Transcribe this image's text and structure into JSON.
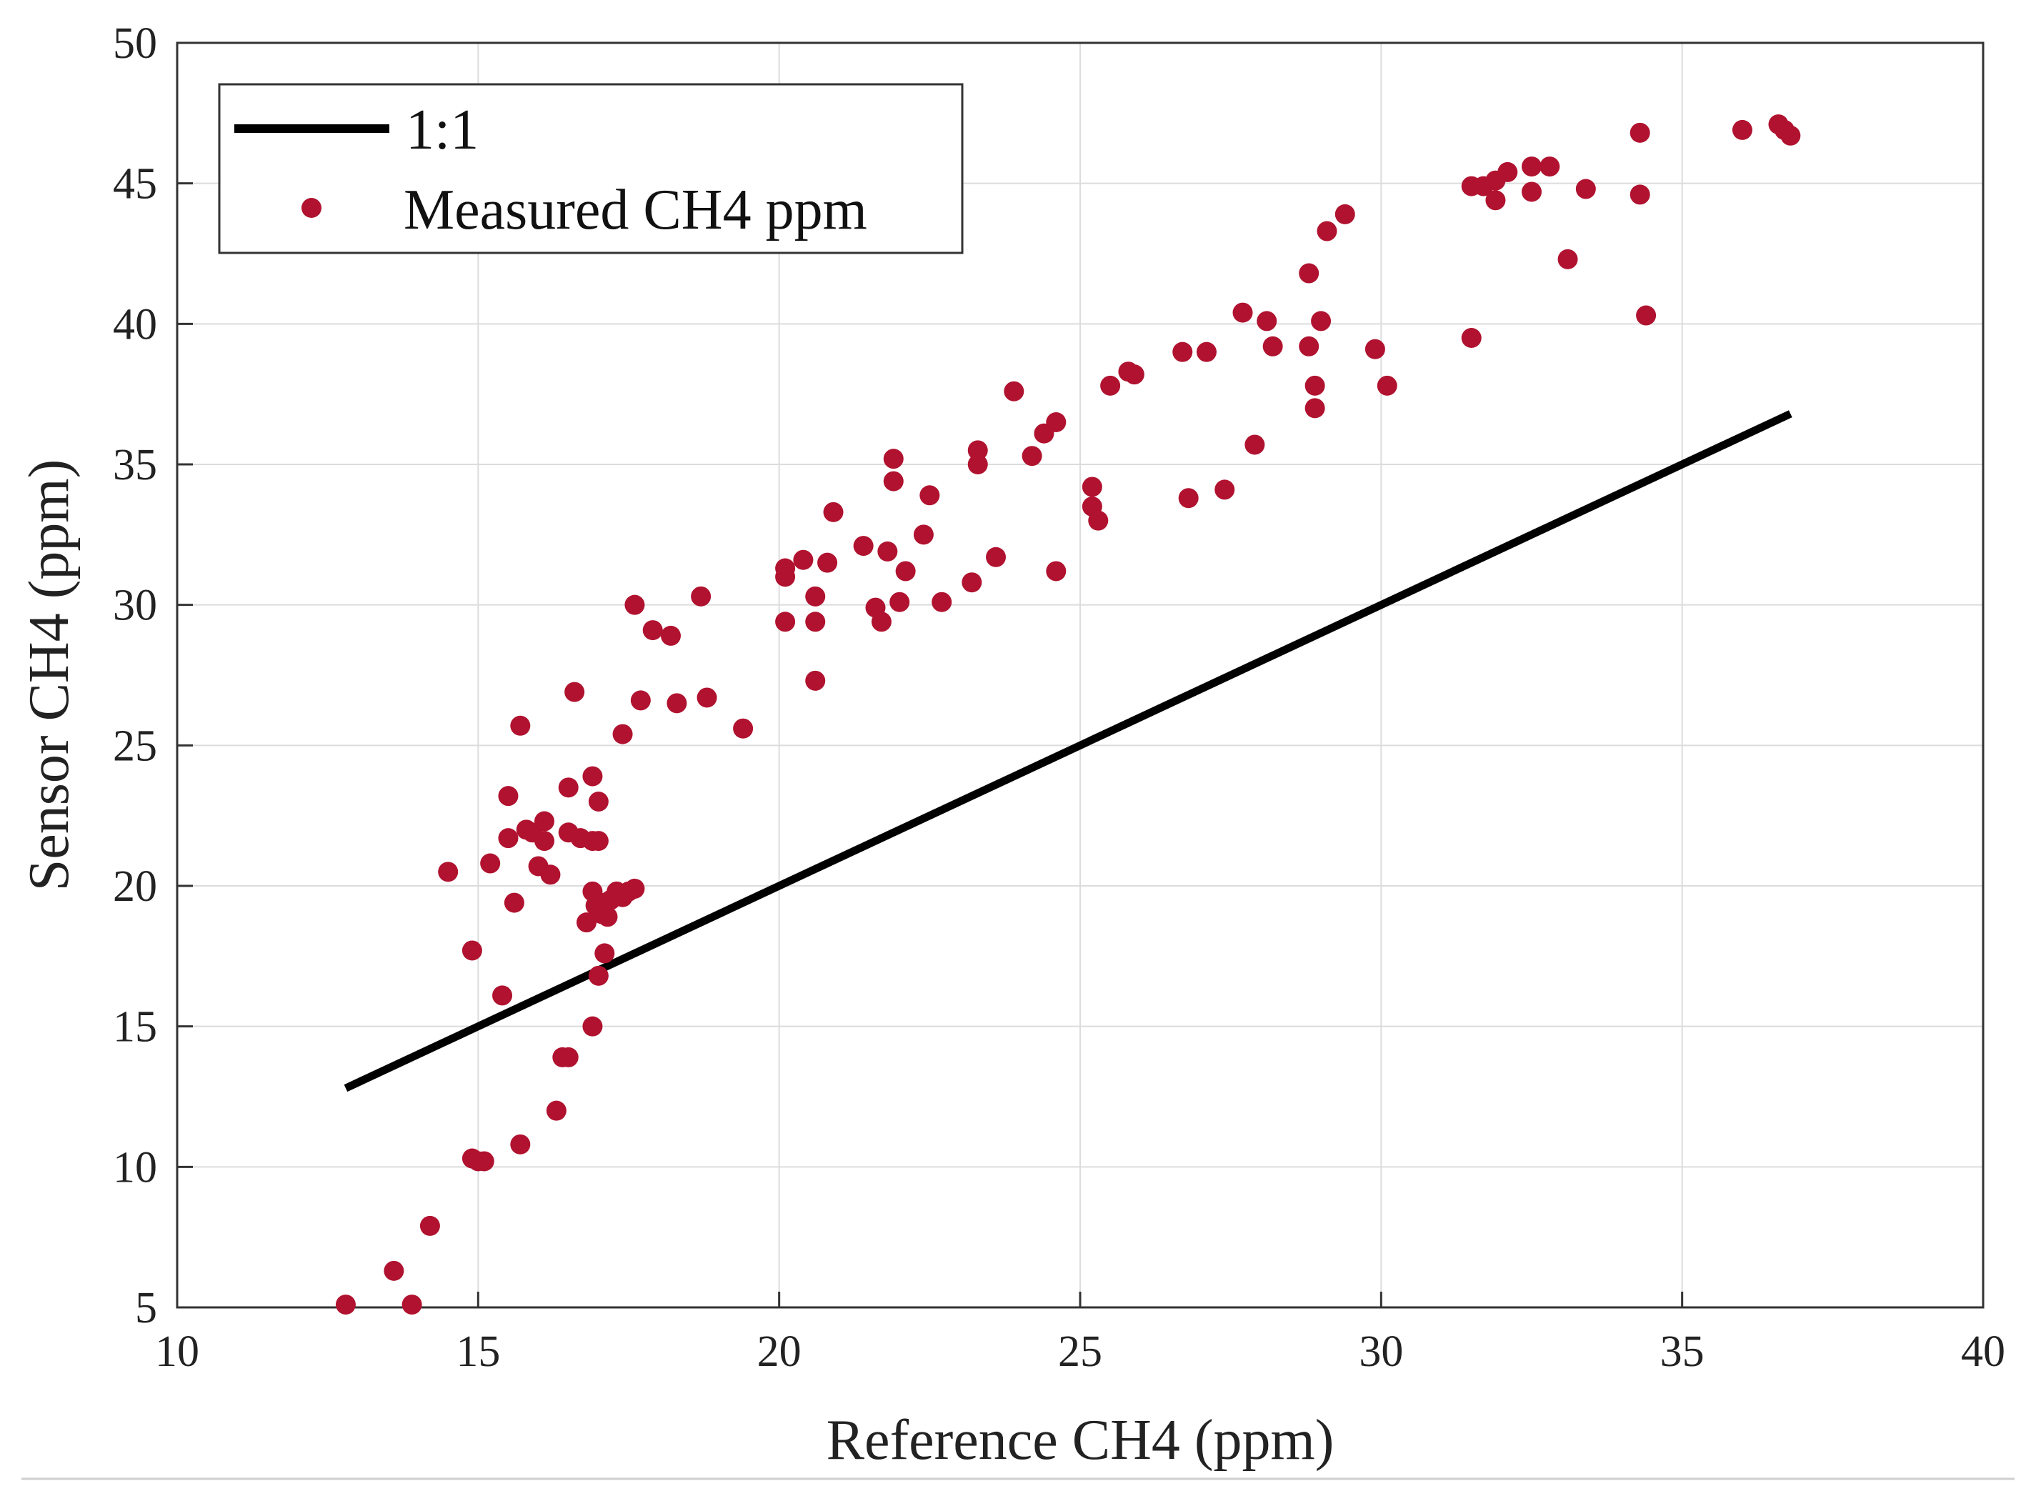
{
  "chart_data": {
    "type": "scatter",
    "title": "",
    "xlabel": "Reference CH4 (ppm)",
    "ylabel": "Sensor CH4 (ppm)",
    "xlim": [
      10,
      40
    ],
    "ylim": [
      5,
      50
    ],
    "x_ticks": [
      10,
      15,
      20,
      25,
      30,
      35,
      40
    ],
    "y_ticks": [
      5,
      10,
      15,
      20,
      25,
      30,
      35,
      40,
      45,
      50
    ],
    "x_tick_labels": [
      "10",
      "15",
      "20",
      "25",
      "30",
      "35",
      "40"
    ],
    "y_tick_labels": [
      "5",
      "10",
      "15",
      "20",
      "25",
      "30",
      "35",
      "40",
      "45",
      "50"
    ],
    "grid": true,
    "legend": {
      "position": "top-left",
      "entries": [
        "1:1",
        "Measured CH4 ppm"
      ]
    },
    "colors": {
      "points": "#b0122f",
      "line": "#000000",
      "grid": "#dcdcdc"
    },
    "series": [
      {
        "name": "1:1",
        "type": "line",
        "x": [
          12.8,
          36.8
        ],
        "y": [
          12.8,
          36.8
        ]
      },
      {
        "name": "Measured CH4 ppm",
        "type": "scatter",
        "points": [
          [
            12.8,
            5.1
          ],
          [
            13.6,
            6.3
          ],
          [
            13.9,
            5.1
          ],
          [
            14.2,
            7.9
          ],
          [
            14.5,
            20.5
          ],
          [
            14.9,
            17.7
          ],
          [
            14.9,
            10.3
          ],
          [
            15.0,
            10.2
          ],
          [
            15.1,
            10.2
          ],
          [
            15.2,
            20.8
          ],
          [
            15.4,
            16.1
          ],
          [
            15.5,
            23.2
          ],
          [
            15.5,
            21.7
          ],
          [
            15.6,
            19.4
          ],
          [
            15.7,
            25.7
          ],
          [
            15.7,
            10.8
          ],
          [
            15.8,
            22.0
          ],
          [
            15.9,
            21.9
          ],
          [
            16.0,
            20.7
          ],
          [
            16.1,
            22.3
          ],
          [
            16.1,
            21.6
          ],
          [
            16.2,
            20.4
          ],
          [
            16.3,
            12.0
          ],
          [
            16.4,
            13.9
          ],
          [
            16.5,
            23.5
          ],
          [
            16.5,
            13.9
          ],
          [
            16.5,
            21.9
          ],
          [
            16.6,
            26.9
          ],
          [
            16.7,
            21.7
          ],
          [
            16.8,
            18.7
          ],
          [
            16.9,
            23.9
          ],
          [
            16.9,
            21.6
          ],
          [
            16.9,
            19.8
          ],
          [
            16.9,
            15.0
          ],
          [
            16.95,
            19.3
          ],
          [
            17.0,
            16.8
          ],
          [
            17.0,
            21.6
          ],
          [
            17.0,
            23.0
          ],
          [
            17.05,
            19.0
          ],
          [
            17.1,
            17.6
          ],
          [
            17.1,
            19.4
          ],
          [
            17.15,
            18.9
          ],
          [
            17.2,
            19.5
          ],
          [
            17.3,
            19.8
          ],
          [
            17.4,
            25.4
          ],
          [
            17.4,
            19.6
          ],
          [
            17.5,
            19.8
          ],
          [
            17.6,
            30.0
          ],
          [
            17.6,
            19.9
          ],
          [
            17.7,
            26.6
          ],
          [
            17.9,
            29.1
          ],
          [
            18.2,
            28.9
          ],
          [
            18.3,
            26.5
          ],
          [
            18.7,
            30.3
          ],
          [
            18.8,
            26.7
          ],
          [
            19.4,
            25.6
          ],
          [
            20.1,
            31.3
          ],
          [
            20.1,
            31.0
          ],
          [
            20.1,
            29.4
          ],
          [
            20.4,
            31.6
          ],
          [
            20.6,
            30.3
          ],
          [
            20.6,
            29.4
          ],
          [
            20.6,
            27.3
          ],
          [
            20.8,
            31.5
          ],
          [
            20.9,
            33.3
          ],
          [
            21.4,
            32.1
          ],
          [
            21.6,
            29.9
          ],
          [
            21.7,
            29.4
          ],
          [
            21.8,
            31.9
          ],
          [
            21.9,
            35.2
          ],
          [
            21.9,
            34.4
          ],
          [
            22.0,
            30.1
          ],
          [
            22.1,
            31.2
          ],
          [
            22.4,
            32.5
          ],
          [
            22.5,
            33.9
          ],
          [
            22.7,
            30.1
          ],
          [
            23.2,
            30.8
          ],
          [
            23.3,
            35.5
          ],
          [
            23.3,
            35.0
          ],
          [
            23.6,
            31.7
          ],
          [
            23.9,
            37.6
          ],
          [
            24.2,
            35.3
          ],
          [
            24.4,
            36.1
          ],
          [
            24.6,
            36.5
          ],
          [
            24.6,
            31.2
          ],
          [
            25.2,
            34.2
          ],
          [
            25.2,
            33.5
          ],
          [
            25.3,
            33.0
          ],
          [
            25.5,
            37.8
          ],
          [
            25.8,
            38.3
          ],
          [
            25.9,
            38.2
          ],
          [
            26.7,
            39.0
          ],
          [
            26.8,
            33.8
          ],
          [
            27.1,
            39.0
          ],
          [
            27.4,
            34.1
          ],
          [
            27.7,
            40.4
          ],
          [
            27.9,
            35.7
          ],
          [
            28.1,
            40.1
          ],
          [
            28.2,
            39.2
          ],
          [
            28.8,
            39.2
          ],
          [
            28.8,
            41.8
          ],
          [
            28.9,
            37.8
          ],
          [
            28.9,
            37.0
          ],
          [
            29.0,
            40.1
          ],
          [
            29.1,
            43.3
          ],
          [
            29.4,
            43.9
          ],
          [
            29.9,
            39.1
          ],
          [
            30.1,
            37.8
          ],
          [
            31.5,
            44.9
          ],
          [
            31.5,
            39.5
          ],
          [
            31.7,
            44.9
          ],
          [
            31.9,
            45.1
          ],
          [
            31.9,
            44.4
          ],
          [
            32.1,
            45.4
          ],
          [
            32.5,
            44.7
          ],
          [
            32.5,
            45.6
          ],
          [
            32.8,
            45.6
          ],
          [
            33.1,
            42.3
          ],
          [
            33.4,
            44.8
          ],
          [
            34.3,
            46.8
          ],
          [
            34.3,
            44.6
          ],
          [
            34.4,
            40.3
          ],
          [
            36.0,
            46.9
          ],
          [
            36.6,
            47.1
          ],
          [
            36.7,
            46.9
          ],
          [
            36.8,
            46.7
          ]
        ]
      }
    ]
  }
}
